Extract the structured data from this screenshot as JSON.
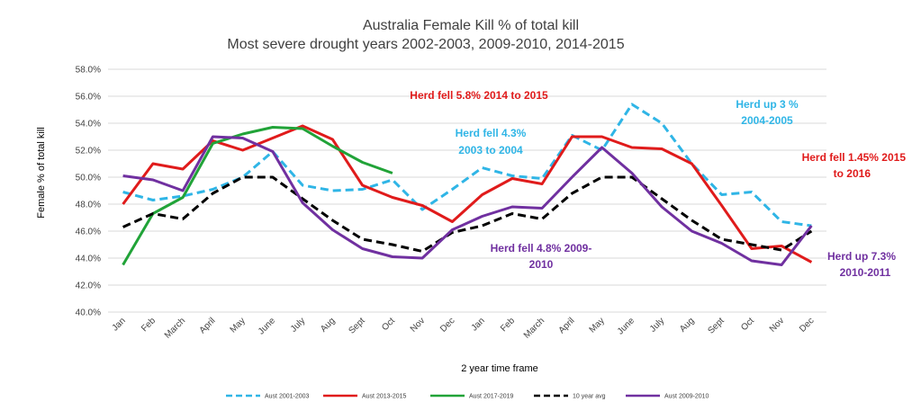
{
  "chart_data": {
    "type": "line",
    "title": [
      "Australia Female Kill % of total kill",
      "Most severe drought years 2002-2003, 2009-2010, 2014-2015"
    ],
    "xlabel": "2 year time frame",
    "ylabel": "Female % of total kill",
    "categories": [
      "Jan",
      "Feb",
      "March",
      "April",
      "May",
      "June",
      "July",
      "Aug",
      "Sept",
      "Oct",
      "Nov",
      "Dec",
      "Jan",
      "Feb",
      "March",
      "April",
      "May",
      "June",
      "July",
      "Aug",
      "Sept",
      "Oct",
      "Nov",
      "Dec"
    ],
    "ylim": [
      40,
      58
    ],
    "yticks": [
      40,
      42,
      44,
      46,
      48,
      50,
      52,
      54,
      56,
      58
    ],
    "ytick_labels": [
      "40.0%",
      "42.0%",
      "44.0%",
      "46.0%",
      "48.0%",
      "50.0%",
      "52.0%",
      "54.0%",
      "56.0%",
      "58.0%"
    ],
    "grid": true,
    "legend_position": "bottom",
    "series": [
      {
        "name": "Aust 2001-2003",
        "color": "#2fb5e6",
        "dash": "dashed",
        "values": [
          48.9,
          48.3,
          48.6,
          49.1,
          50.0,
          51.9,
          49.4,
          49.0,
          49.1,
          49.8,
          47.6,
          49.1,
          50.7,
          50.1,
          49.9,
          53.1,
          52.0,
          55.4,
          54.0,
          51.0,
          48.7,
          48.9,
          46.7,
          46.4
        ]
      },
      {
        "name": "Aust 2013-2015",
        "color": "#e01b1b",
        "dash": "solid",
        "values": [
          48.0,
          51.0,
          50.6,
          52.7,
          52.0,
          52.9,
          53.8,
          52.8,
          49.4,
          48.5,
          47.9,
          46.7,
          48.7,
          49.9,
          49.5,
          53.0,
          53.0,
          52.2,
          52.1,
          51.0,
          47.9,
          44.7,
          44.9,
          43.7
        ]
      },
      {
        "name": "Aust 2017-2019",
        "color": "#21a338",
        "dash": "solid",
        "values": [
          43.5,
          47.3,
          48.5,
          52.5,
          53.2,
          53.7,
          53.6,
          52.3,
          51.1,
          50.3,
          null,
          null,
          null,
          null,
          null,
          null,
          null,
          null,
          null,
          null,
          null,
          null,
          null,
          null
        ]
      },
      {
        "name": "10 year avg",
        "color": "#000000",
        "dash": "dashed",
        "values": [
          46.3,
          47.3,
          46.9,
          48.8,
          50.0,
          50.0,
          48.4,
          46.8,
          45.4,
          45.0,
          44.5,
          45.9,
          46.4,
          47.3,
          46.9,
          48.8,
          50.0,
          50.0,
          48.4,
          46.8,
          45.4,
          45.0,
          44.6,
          46.0
        ]
      },
      {
        "name": "Aust 2009-2010",
        "color": "#7030a0",
        "dash": "solid",
        "values": [
          50.1,
          49.8,
          49.0,
          53.0,
          52.9,
          51.9,
          48.1,
          46.1,
          44.7,
          44.1,
          44.0,
          46.1,
          47.1,
          47.8,
          47.7,
          50.0,
          52.2,
          50.3,
          47.8,
          46.0,
          45.1,
          43.8,
          43.5,
          46.4
        ]
      }
    ],
    "annotations": [
      {
        "text": "Herd fell 5.8% 2014 to 2015",
        "color": "#e01b1b"
      },
      {
        "text": "Herd fell 4.3%",
        "text2": "2003  to 2004",
        "color": "#2fb5e6"
      },
      {
        "text": "Herd up 3 %",
        "text2": "2004-2005",
        "color": "#2fb5e6"
      },
      {
        "text": "Herd fell 1.45% 2015",
        "text2": "to 2016",
        "color": "#e01b1b"
      },
      {
        "text": "Herd fell 4.8% 2009-",
        "text2": "2010",
        "color": "#7030a0"
      },
      {
        "text": "Herd up 7.3%",
        "text2": "2010-2011",
        "color": "#7030a0"
      }
    ]
  }
}
